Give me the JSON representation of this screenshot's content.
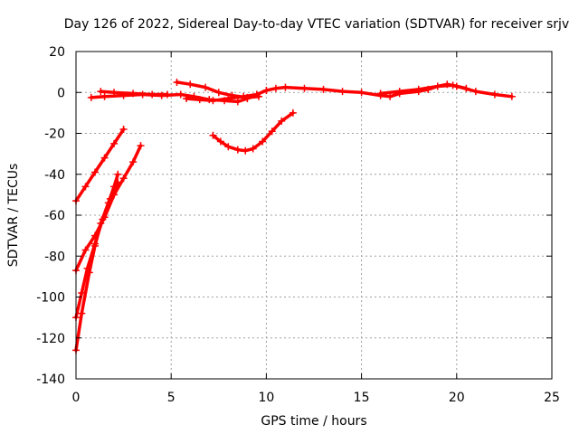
{
  "chart_data": {
    "type": "scatter",
    "title": "Day 126 of 2022, Sidereal Day-to-day VTEC variation (SDTVAR) for receiver srjv",
    "xlabel": "GPS time / hours",
    "ylabel": "SDTVAR / TECUs",
    "xlim": [
      0,
      25
    ],
    "ylim": [
      -140,
      20
    ],
    "xticks": [
      0,
      5,
      10,
      15,
      20,
      25
    ],
    "yticks": [
      -140,
      -120,
      -100,
      -80,
      -60,
      -40,
      -20,
      0,
      20
    ],
    "xtick_labels": [
      "0",
      "5",
      "10",
      "15",
      "20",
      "25"
    ],
    "ytick_labels": [
      "-140",
      "-120",
      "-100",
      "-80",
      "-60",
      "-40",
      "-20",
      "0",
      "20"
    ],
    "grid": true,
    "color": "#ff0000",
    "series": [
      {
        "x": [
          0,
          0.5,
          1.0,
          1.5,
          2.0,
          2.5
        ],
        "y": [
          -53,
          -46,
          -39,
          -32,
          -25,
          -18
        ]
      },
      {
        "x": [
          0,
          0.5,
          1.0,
          1.5,
          2.0,
          2.5,
          3.0,
          3.4
        ],
        "y": [
          -87,
          -77,
          -70,
          -61,
          -50,
          -42,
          -34,
          -26
        ]
      },
      {
        "x": [
          0,
          0.3,
          0.7,
          1.0,
          1.3,
          1.7,
          2.0,
          2.2
        ],
        "y": [
          -126,
          -108,
          -88,
          -75,
          -64,
          -54,
          -46,
          -40
        ]
      },
      {
        "x": [
          0,
          0.3,
          0.6,
          1.0,
          1.4,
          1.8,
          2.2
        ],
        "y": [
          -110,
          -98,
          -86,
          -74,
          -62,
          -52,
          -44
        ]
      },
      {
        "x": [
          7.2,
          7.6,
          8.0,
          8.5,
          8.9,
          9.3,
          9.8,
          10.3,
          10.8,
          11.4
        ],
        "y": [
          -21,
          -24,
          -26.5,
          -28,
          -28.5,
          -27.5,
          -24,
          -19,
          -14,
          -10
        ]
      },
      {
        "x": [
          0.8,
          1.5,
          2.5,
          3.5,
          4.5,
          5.5,
          6.2,
          7.0,
          7.8,
          8.5,
          9.0,
          9.5,
          10.0,
          10.5,
          11.0,
          12.0,
          13.0,
          14.0,
          15.0,
          16.0,
          16.5,
          17.0,
          18.0,
          18.5,
          19.0,
          19.5,
          20.0,
          21.0,
          22.0,
          22.9
        ],
        "y": [
          -2.5,
          -2,
          -1.5,
          -1,
          -1.5,
          -1,
          -2,
          -3.5,
          -4,
          -4.5,
          -3,
          -1,
          1,
          2,
          2.5,
          2,
          1.5,
          0.5,
          0,
          -1.5,
          -2,
          -0.5,
          0.5,
          1.5,
          3,
          4,
          3,
          0.5,
          -1,
          -2
        ]
      },
      {
        "x": [
          1.3,
          2.0,
          3.0,
          4.0,
          4.8
        ],
        "y": [
          0.5,
          0,
          -0.5,
          -1,
          -1
        ]
      },
      {
        "x": [
          5.3,
          6.0,
          6.8,
          7.5,
          8.2,
          9.0,
          9.6
        ],
        "y": [
          5,
          4,
          2.5,
          0,
          -1.5,
          -2.5,
          -2
        ]
      },
      {
        "x": [
          5.8,
          6.5,
          7.2,
          8.0,
          8.8,
          9.5
        ],
        "y": [
          -3,
          -3.5,
          -4,
          -3,
          -2,
          -1
        ]
      },
      {
        "x": [
          16.0,
          17.0,
          18.0,
          19.0,
          19.8,
          20.5
        ],
        "y": [
          -0.5,
          0.5,
          1.5,
          3,
          3.5,
          2
        ]
      }
    ]
  }
}
